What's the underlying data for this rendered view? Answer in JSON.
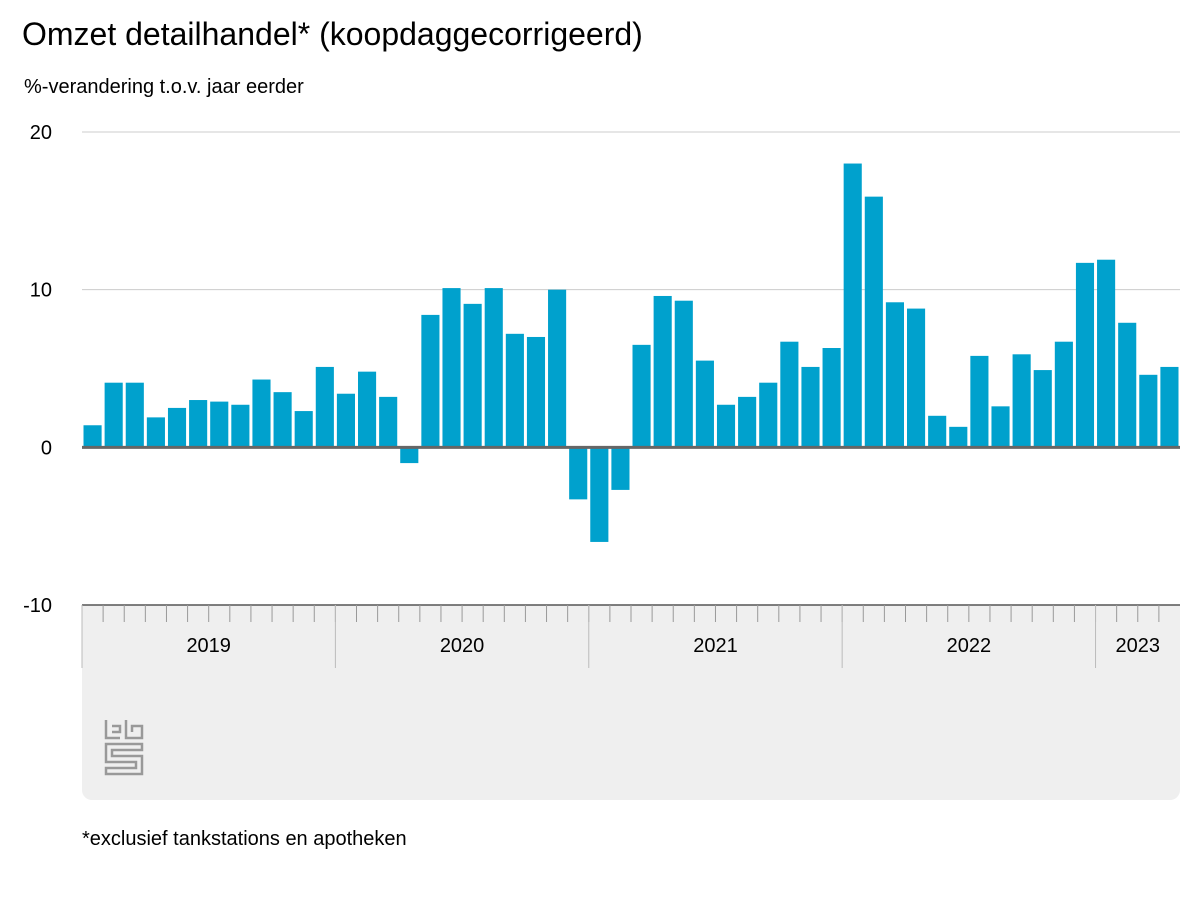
{
  "title": "Omzet detailhandel* (koopdaggecorrigeerd)",
  "subtitle": "%-verandering t.o.v. jaar eerder",
  "footnote": "*exclusief tankstations en apotheken",
  "logo_text": "cbs",
  "chart_data": {
    "type": "bar",
    "title": "Omzet detailhandel* (koopdaggecorrigeerd)",
    "ylabel": "%-verandering t.o.v. jaar eerder",
    "xlabel": "",
    "ylim": [
      -10,
      20
    ],
    "yticks": [
      -10,
      0,
      10,
      20
    ],
    "grid": true,
    "bar_color": "#00a1cd",
    "year_labels": [
      {
        "label": "2019",
        "months": 12
      },
      {
        "label": "2020",
        "months": 12
      },
      {
        "label": "2021",
        "months": 12
      },
      {
        "label": "2022",
        "months": 12
      },
      {
        "label": "2023",
        "months": 4
      }
    ],
    "values": [
      1.4,
      4.1,
      4.1,
      1.9,
      2.5,
      3.0,
      2.9,
      2.7,
      4.3,
      3.5,
      2.3,
      5.1,
      3.4,
      4.8,
      3.2,
      -1.0,
      8.4,
      10.1,
      9.1,
      10.1,
      7.2,
      7.0,
      10.0,
      -3.3,
      -6.0,
      -2.7,
      6.5,
      9.6,
      9.3,
      5.5,
      2.7,
      3.2,
      4.1,
      6.7,
      5.1,
      6.3,
      18.0,
      15.9,
      9.2,
      8.8,
      2.0,
      1.3,
      5.8,
      2.6,
      5.9,
      4.9,
      6.7,
      11.7,
      11.9,
      7.9,
      4.6,
      5.1
    ]
  }
}
